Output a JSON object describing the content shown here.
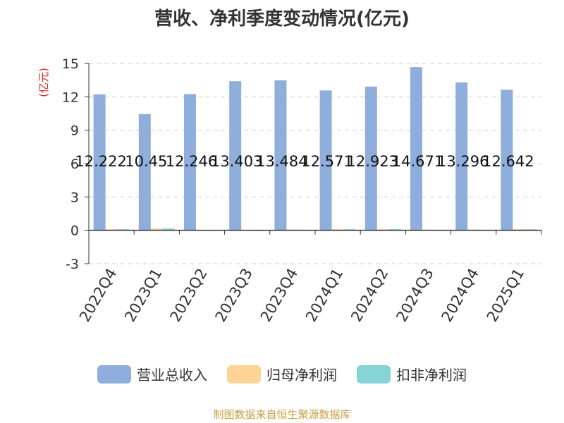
{
  "chart_data": {
    "type": "bar",
    "title": "营收、净利季度变动情况(亿元)",
    "ylabel": "(亿元)",
    "ylim": [
      -3,
      15
    ],
    "yticks": [
      -3,
      0,
      3,
      6,
      9,
      12,
      15
    ],
    "categories": [
      "2022Q4",
      "2023Q1",
      "2023Q2",
      "2023Q3",
      "2023Q4",
      "2024Q1",
      "2024Q2",
      "2024Q3",
      "2024Q4",
      "2025Q1"
    ],
    "series": [
      {
        "name": "营业总收入",
        "color": "#8faedb",
        "values": [
          12.222,
          10.45,
          12.246,
          13.403,
          13.484,
          12.571,
          12.923,
          14.671,
          13.296,
          12.642
        ],
        "labels": [
          "12.222",
          "10.45",
          "12.246",
          "13.403",
          "13.484",
          "12.571",
          "12.923",
          "14.671",
          "13.296",
          "12.642"
        ]
      },
      {
        "name": "归母净利润",
        "color": "#fed596",
        "values": [
          0.1,
          0.17,
          0.03,
          0.02,
          0.08,
          0.1,
          0.1,
          0.06,
          0.07,
          0.1
        ]
      },
      {
        "name": "扣非净利润",
        "color": "#86d4d6",
        "values": [
          0.09,
          0.16,
          0.02,
          0.01,
          0.05,
          0.09,
          0.1,
          0.05,
          0.05,
          0.09
        ]
      }
    ],
    "grid": true,
    "legend": "bottom"
  },
  "footer": "制图数据来自恒生聚源数据库"
}
